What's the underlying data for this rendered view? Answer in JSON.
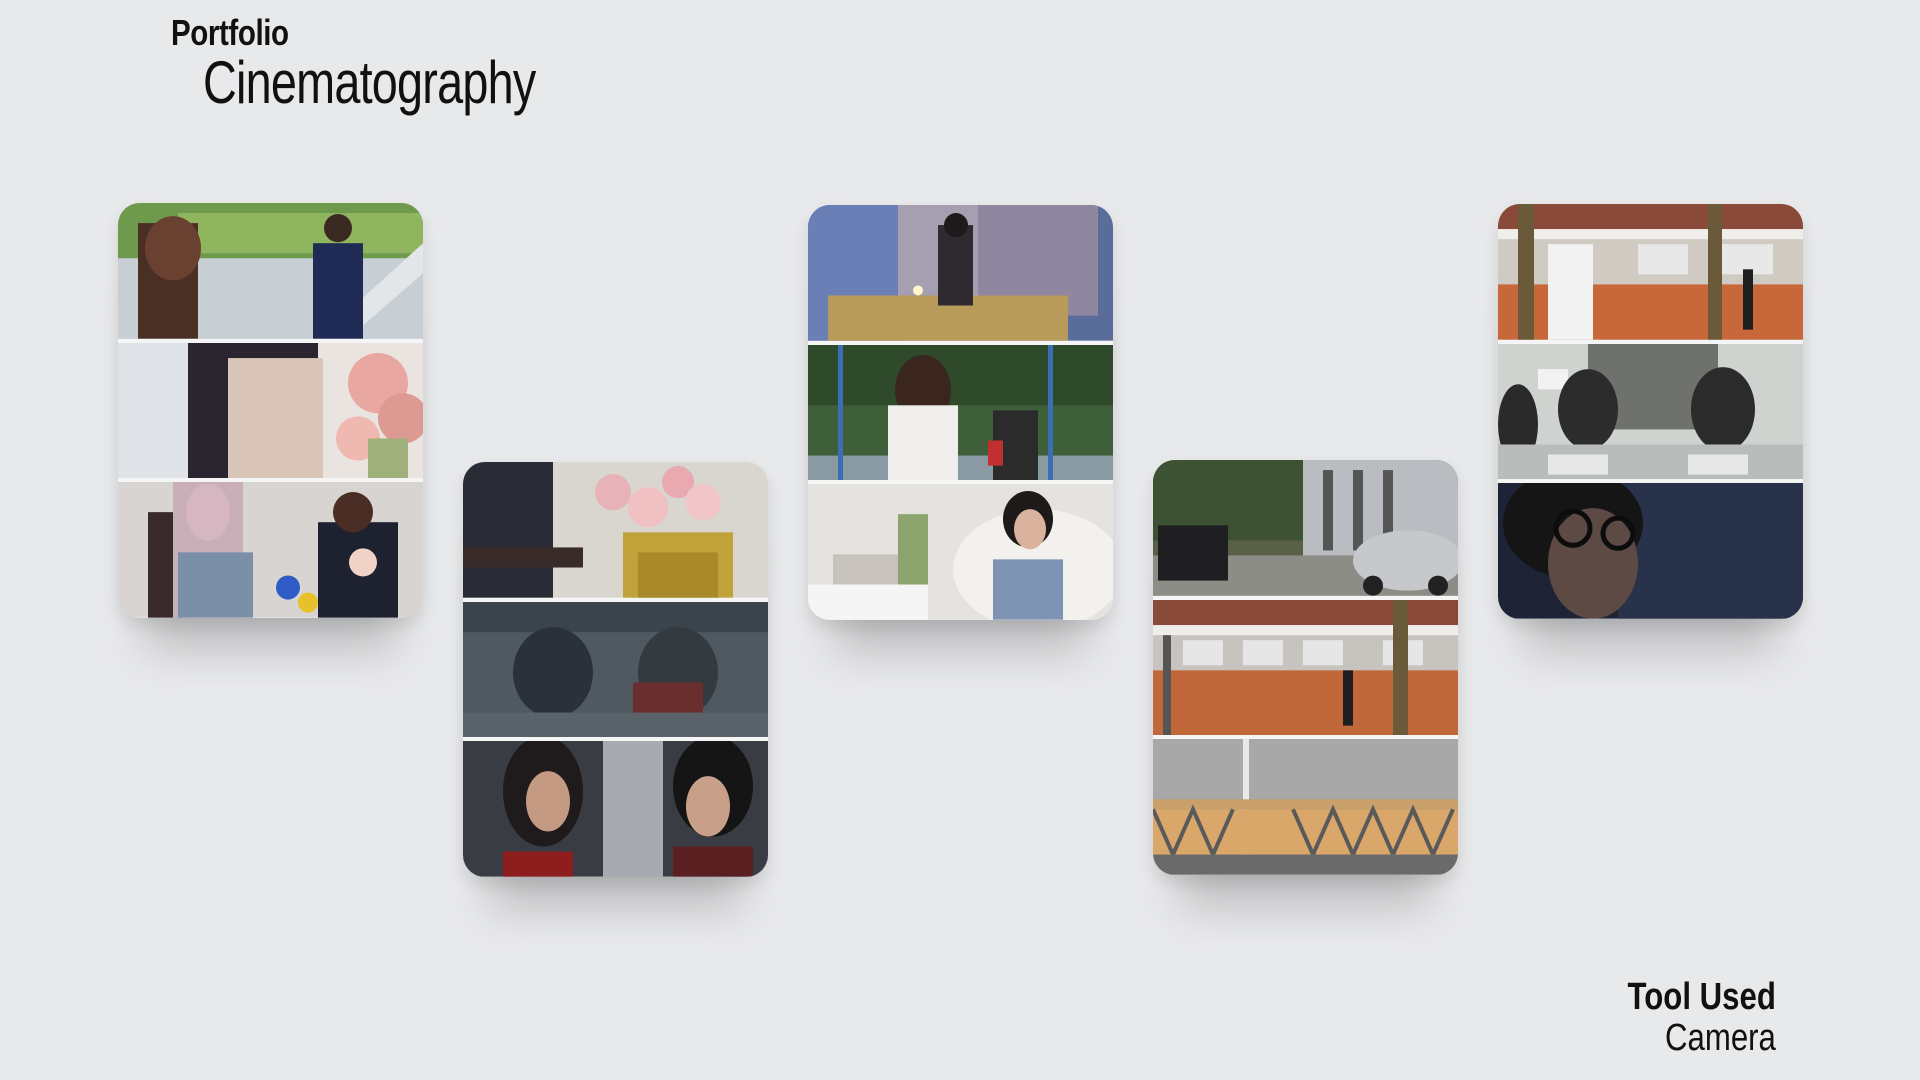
{
  "header": {
    "label": "Portfolio",
    "title": "Cinematography"
  },
  "footer": {
    "label": "Tool Used",
    "value": "Camera"
  },
  "cards": [
    {
      "frames": [
        "scene-courtyard-plants",
        "scene-florist-apron",
        "scene-flower-shop-women"
      ]
    },
    {
      "frames": [
        "scene-pink-flowers-closeup",
        "scene-car-windshield-night",
        "scene-car-interior-couple"
      ]
    },
    {
      "frames": [
        "scene-bedroom-night",
        "scene-park-swing",
        "scene-girl-on-bed"
      ]
    },
    {
      "frames": [
        "scene-street-parked-cars",
        "scene-corridor-walker",
        "scene-balcony-railing"
      ]
    },
    {
      "frames": [
        "scene-building-facade",
        "scene-classroom-screen",
        "scene-glasses-closeup"
      ]
    }
  ]
}
